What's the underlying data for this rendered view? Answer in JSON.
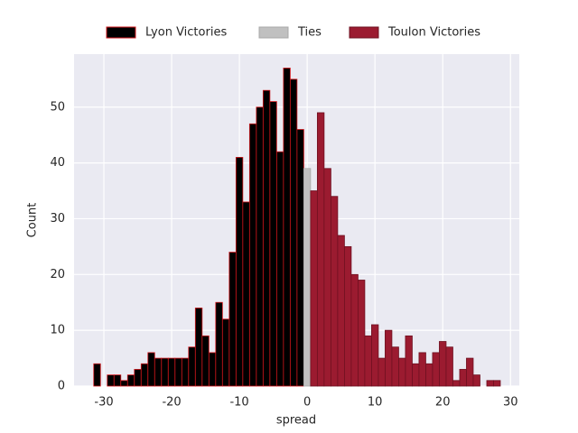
{
  "chart_data": {
    "type": "histogram",
    "xlabel": "spread",
    "ylabel": "Count",
    "xlim": [
      -34.4,
      31.3
    ],
    "ylim": [
      0,
      59.5
    ],
    "xticks": [
      -30,
      -20,
      -10,
      0,
      10,
      20,
      30
    ],
    "yticks": [
      0,
      10,
      20,
      30,
      40,
      50
    ],
    "grid": true,
    "legend": "top",
    "series": [
      {
        "name": "Lyon Victories",
        "color": "#000000",
        "edgecolor": "#d0161b",
        "bins": [
          -31.5,
          -30.5,
          -29.5,
          -28.5,
          -27.5,
          -26.5,
          -25.5,
          -24.5,
          -23.5,
          -22.5,
          -21.5,
          -20.5,
          -19.5,
          -18.5,
          -17.5,
          -16.5,
          -15.5,
          -14.5,
          -13.5,
          -12.5,
          -11.5,
          -10.5,
          -9.5,
          -8.5,
          -7.5,
          -6.5,
          -5.5,
          -4.5,
          -3.5,
          -2.5,
          -1.5,
          -0.5
        ],
        "values": [
          4,
          0,
          2,
          2,
          1,
          2,
          3,
          4,
          6,
          5,
          5,
          5,
          5,
          5,
          7,
          14,
          9,
          6,
          15,
          12,
          24,
          41,
          33,
          47,
          50,
          53,
          51,
          42,
          57,
          55,
          46
        ]
      },
      {
        "name": "Ties",
        "color": "#c0c0c0",
        "edgecolor": "#a8a8a8",
        "bins": [
          -0.5,
          0.5
        ],
        "values": [
          39
        ]
      },
      {
        "name": "Toulon Victories",
        "color": "#9b1b30",
        "edgecolor": "#6e1020",
        "bins": [
          0.5,
          1.5,
          2.5,
          3.5,
          4.5,
          5.5,
          6.5,
          7.5,
          8.5,
          9.5,
          10.5,
          11.5,
          12.5,
          13.5,
          14.5,
          15.5,
          16.5,
          17.5,
          18.5,
          19.5,
          20.5,
          21.5,
          22.5,
          23.5,
          24.5,
          25.5,
          26.5,
          27.5,
          28.5
        ],
        "values": [
          35,
          49,
          39,
          34,
          27,
          25,
          20,
          19,
          9,
          11,
          5,
          10,
          7,
          5,
          9,
          4,
          6,
          4,
          6,
          8,
          7,
          1,
          3,
          5,
          2,
          0,
          1,
          1
        ]
      }
    ]
  }
}
